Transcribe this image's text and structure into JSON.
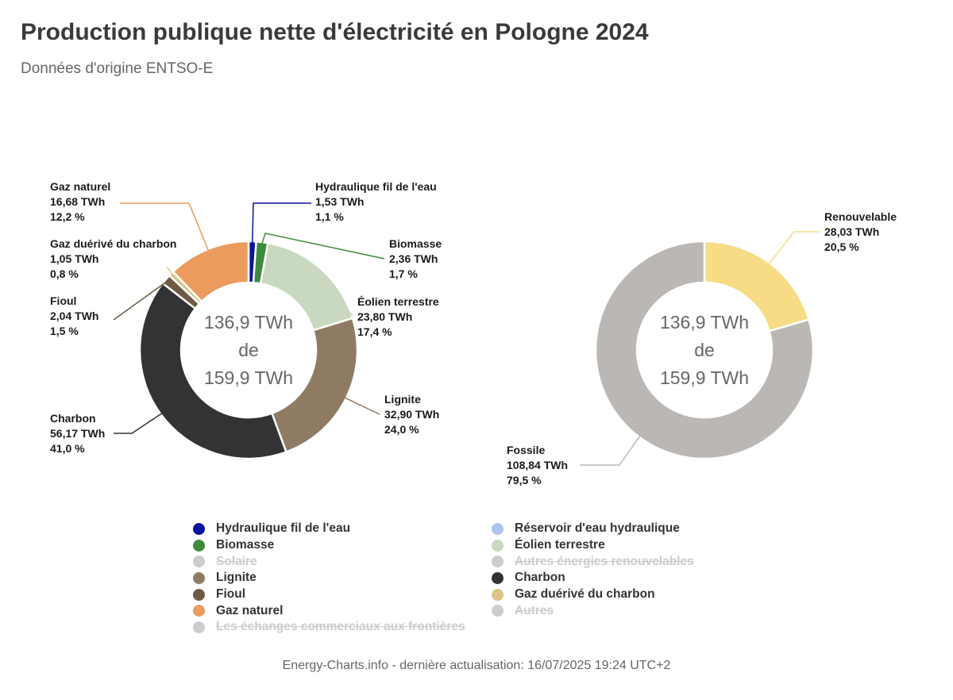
{
  "title": "Production publique nette d'électricité en Pologne 2024",
  "subtitle": "Données d'origine ENTSO-E",
  "footer": "Energy-Charts.info - dernière actualisation: 16/07/2025 19:24 UTC+2",
  "chart_data": [
    {
      "type": "pie",
      "donut": true,
      "center_label": [
        "136,9 TWh",
        "de",
        "159,9 TWh"
      ],
      "series": [
        {
          "name": "Hydraulique fil de l'eau",
          "value": 1.53,
          "value_label": "1,53 TWh",
          "percent_label": "1,1 %",
          "color": "#0a1496"
        },
        {
          "name": "Biomasse",
          "value": 2.36,
          "value_label": "2,36 TWh",
          "percent_label": "1,7 %",
          "color": "#3d8b3d"
        },
        {
          "name": "Éolien terrestre",
          "value": 23.8,
          "value_label": "23,80 TWh",
          "percent_label": "17,4 %",
          "color": "#c8d9bf"
        },
        {
          "name": "Lignite",
          "value": 32.9,
          "value_label": "32,90 TWh",
          "percent_label": "24,0 %",
          "color": "#8f7b63"
        },
        {
          "name": "Charbon",
          "value": 56.17,
          "value_label": "56,17 TWh",
          "percent_label": "41,0 %",
          "color": "#333333"
        },
        {
          "name": "Fioul",
          "value": 2.04,
          "value_label": "2,04 TWh",
          "percent_label": "1,5 %",
          "color": "#6e5a45"
        },
        {
          "name": "Gaz duérivé du charbon",
          "value": 1.05,
          "value_label": "1,05 TWh",
          "percent_label": "0,8 %",
          "color": "#dfc38a"
        },
        {
          "name": "Gaz naturel",
          "value": 16.68,
          "value_label": "16,68 TWh",
          "percent_label": "12,2 %",
          "color": "#ea9b5d"
        }
      ]
    },
    {
      "type": "pie",
      "donut": true,
      "center_label": [
        "136,9 TWh",
        "de",
        "159,9 TWh"
      ],
      "series": [
        {
          "name": "Renouvelable",
          "value": 28.03,
          "value_label": "28,03 TWh",
          "percent_label": "20,5 %",
          "color": "#f7dc85"
        },
        {
          "name": "Fossile",
          "value": 108.84,
          "value_label": "108,84 TWh",
          "percent_label": "79,5 %",
          "color": "#bab7b4"
        }
      ]
    }
  ],
  "legend": {
    "items": [
      {
        "label": "Hydraulique fil de l'eau",
        "color": "#0a14a0",
        "hidden": false
      },
      {
        "label": "Réservoir d'eau hydraulique",
        "color": "#aec4f0",
        "hidden": false
      },
      {
        "label": "Biomasse",
        "color": "#3d8b3d",
        "hidden": false
      },
      {
        "label": "Éolien terrestre",
        "color": "#c8d9bf",
        "hidden": false
      },
      {
        "label": "Solaire",
        "color": "#cccccc",
        "hidden": true
      },
      {
        "label": "Autres énergies renouvelables",
        "color": "#cccccc",
        "hidden": true
      },
      {
        "label": "Lignite",
        "color": "#8f7b63",
        "hidden": false
      },
      {
        "label": "Charbon",
        "color": "#333333",
        "hidden": false
      },
      {
        "label": "Fioul",
        "color": "#6e5a45",
        "hidden": false
      },
      {
        "label": "Gaz duérivé du charbon",
        "color": "#dfc38a",
        "hidden": false
      },
      {
        "label": "Gaz naturel",
        "color": "#ea9b5d",
        "hidden": false
      },
      {
        "label": "Autres",
        "color": "#cccccc",
        "hidden": true
      },
      {
        "label": "Les échanges commerciaux aux frontières",
        "color": "#cccccc",
        "hidden": true
      }
    ]
  }
}
